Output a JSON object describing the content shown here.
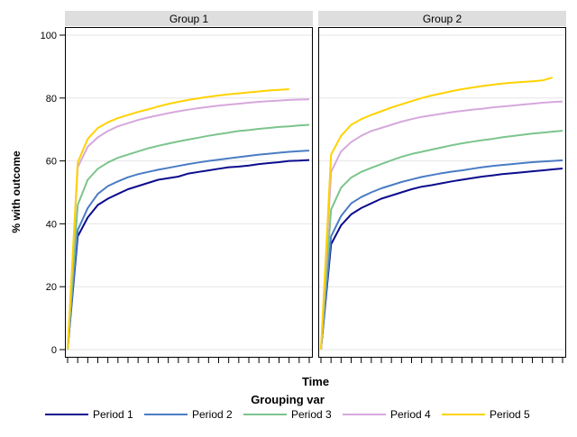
{
  "chart_data": {
    "type": "line",
    "ylabel": "% with outcome",
    "xlabel": "Time",
    "ylim": [
      0,
      100
    ],
    "yticks": [
      0,
      20,
      40,
      60,
      80,
      100
    ],
    "xlim": [
      0,
      24
    ],
    "x_tick_count": 25,
    "grid": "horizontal",
    "legend": {
      "title": "Grouping var",
      "placement": "bottom"
    },
    "series_colors": {
      "Period 1": "#0b0b8e",
      "Period 2": "#4a7cc4",
      "Period 3": "#7cc48c",
      "Period 4": "#d6a8dc",
      "Period 5": "#ffd200"
    },
    "panels": [
      {
        "title": "Group 1",
        "series": [
          {
            "name": "Period 1",
            "values": [
              0,
              36,
              42,
              46,
              48,
              49.5,
              51,
              52,
              53,
              54,
              54.5,
              55,
              56,
              56.5,
              57,
              57.5,
              58,
              58.2,
              58.5,
              59,
              59.3,
              59.6,
              60,
              60.1,
              60.3
            ]
          },
          {
            "name": "Period 2",
            "values": [
              0,
              38,
              45,
              49.5,
              52,
              53.5,
              54.8,
              55.8,
              56.5,
              57.2,
              57.8,
              58.4,
              59,
              59.5,
              60,
              60.4,
              60.8,
              61.2,
              61.6,
              62,
              62.3,
              62.6,
              62.9,
              63.1,
              63.3
            ]
          },
          {
            "name": "Period 3",
            "values": [
              0,
              46,
              54,
              57.5,
              59.5,
              61,
              62,
              63,
              64,
              64.8,
              65.5,
              66.2,
              66.8,
              67.4,
              68,
              68.5,
              69,
              69.5,
              69.8,
              70.2,
              70.5,
              70.8,
              71,
              71.3,
              71.5
            ]
          },
          {
            "name": "Period 4",
            "values": [
              0,
              58,
              64.5,
              67.5,
              69.5,
              71,
              72,
              73,
              73.8,
              74.5,
              75.2,
              75.8,
              76.3,
              76.8,
              77.2,
              77.6,
              77.9,
              78.2,
              78.5,
              78.8,
              79,
              79.2,
              79.4,
              79.5,
              79.6
            ]
          },
          {
            "name": "Period 5",
            "values": [
              0,
              59.5,
              67,
              70.5,
              72.3,
              73.6,
              74.6,
              75.6,
              76.4,
              77.3,
              78.1,
              78.8,
              79.4,
              79.9,
              80.4,
              80.8,
              81.2,
              81.5,
              81.8,
              82.1,
              82.4,
              82.6,
              82.8
            ]
          }
        ]
      },
      {
        "title": "Group 2",
        "series": [
          {
            "name": "Period 1",
            "values": [
              0,
              33.5,
              39.5,
              43,
              45,
              46.5,
              48,
              49,
              50,
              51,
              51.8,
              52.3,
              52.9,
              53.5,
              54,
              54.5,
              55,
              55.4,
              55.8,
              56.1,
              56.4,
              56.7,
              57,
              57.3,
              57.6
            ]
          },
          {
            "name": "Period 2",
            "values": [
              0,
              36,
              42.5,
              46.5,
              48.5,
              50,
              51.3,
              52.3,
              53.3,
              54.1,
              54.9,
              55.5,
              56.1,
              56.6,
              57,
              57.5,
              58,
              58.4,
              58.7,
              59,
              59.3,
              59.6,
              59.8,
              60,
              60.2
            ]
          },
          {
            "name": "Period 3",
            "values": [
              0,
              44.5,
              51.5,
              54.7,
              56.5,
              57.8,
              59,
              60.2,
              61.3,
              62.2,
              62.9,
              63.6,
              64.3,
              65,
              65.6,
              66.1,
              66.6,
              67,
              67.5,
              67.9,
              68.3,
              68.7,
              69,
              69.3,
              69.6
            ]
          },
          {
            "name": "Period 4",
            "values": [
              0,
              56.5,
              63,
              66,
              68,
              69.5,
              70.5,
              71.5,
              72.5,
              73.3,
              74,
              74.5,
              75,
              75.5,
              75.9,
              76.3,
              76.6,
              77,
              77.3,
              77.6,
              77.9,
              78.2,
              78.5,
              78.7,
              78.9
            ]
          },
          {
            "name": "Period 5",
            "values": [
              0,
              62,
              68,
              71.5,
              73.3,
              74.6,
              75.8,
              77,
              78,
              79,
              80,
              80.8,
              81.5,
              82.2,
              82.8,
              83.3,
              83.8,
              84.2,
              84.6,
              84.9,
              85.1,
              85.3,
              85.6,
              86.5
            ]
          }
        ]
      }
    ]
  }
}
